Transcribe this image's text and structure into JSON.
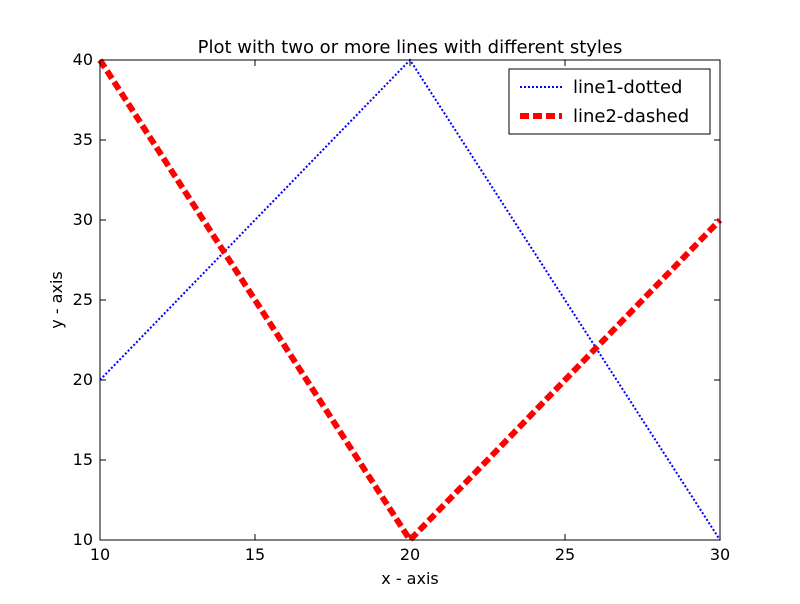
{
  "chart_data": {
    "type": "line",
    "title": "Plot with two or more lines with different styles",
    "xlabel": "x - axis",
    "ylabel": "y - axis",
    "xlim": [
      10,
      30
    ],
    "ylim": [
      10,
      40
    ],
    "xticks": [
      10,
      15,
      20,
      25,
      30
    ],
    "yticks": [
      10,
      15,
      20,
      25,
      30,
      35,
      40
    ],
    "grid": false,
    "legend_position": "top-right",
    "series": [
      {
        "name": "line1-dotted",
        "x": [
          10,
          20,
          30
        ],
        "y": [
          20,
          40,
          10
        ],
        "color": "#0000ff",
        "style": "dotted"
      },
      {
        "name": "line2-dashed",
        "x": [
          10,
          20,
          30
        ],
        "y": [
          40,
          10,
          30
        ],
        "color": "#ff0000",
        "style": "dashed"
      }
    ]
  }
}
